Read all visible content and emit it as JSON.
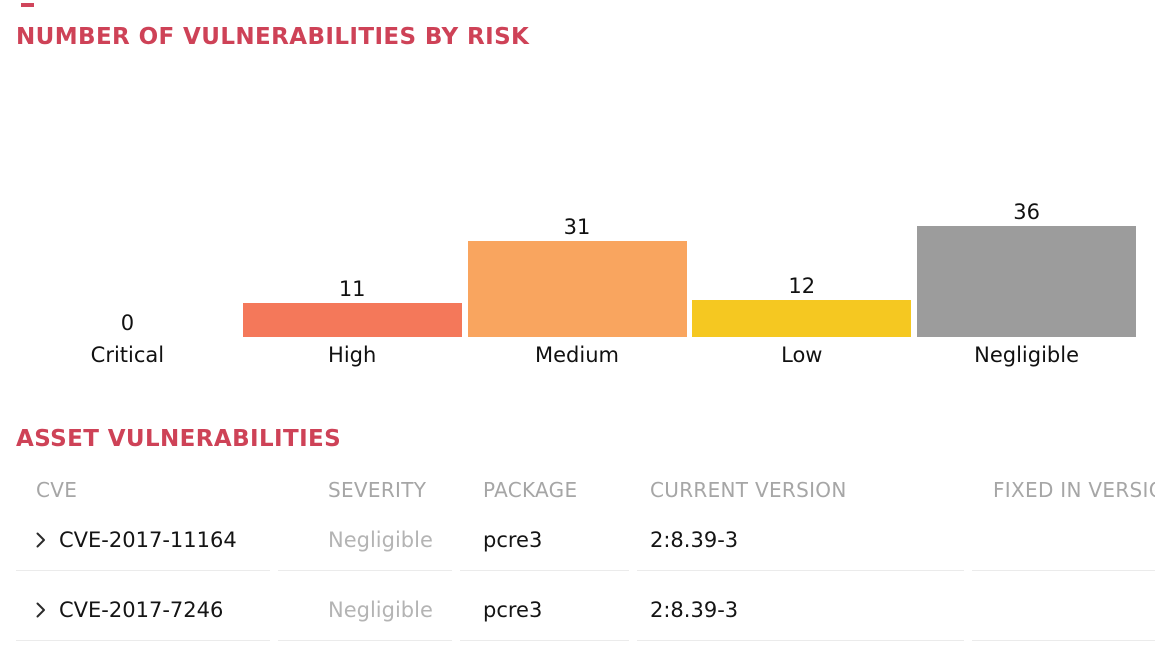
{
  "page": {
    "background": "#FFFFFF",
    "accent_dash_color": "#D0455B",
    "title_color": "#CE4257",
    "text_color": "#141414"
  },
  "chart_section": {
    "title": "NUMBER OF VULNERABILITIES BY RISK"
  },
  "chart_data": {
    "type": "bar",
    "title": "NUMBER OF VULNERABILITIES BY RISK",
    "categories": [
      "Critical",
      "High",
      "Medium",
      "Low",
      "Negligible"
    ],
    "values": [
      0,
      11,
      31,
      12,
      36
    ],
    "value_labels": [
      "0",
      "11",
      "31",
      "12",
      "36"
    ],
    "bar_colors": [
      null,
      "#F4785A",
      "#F9A55F",
      "#F5C821",
      "#9C9C9C"
    ],
    "label_color": "#111111",
    "xlabel": "",
    "ylabel": "",
    "ylim": [
      0,
      36
    ],
    "grid": "off",
    "axes": "hidden",
    "legend": "none"
  },
  "table_section": {
    "title": "ASSET VULNERABILITIES",
    "header_color": "#A6A6A6",
    "severity_color": "#B4B4B4",
    "divider_color": "#EBEBEB",
    "columns": [
      "CVE",
      "SEVERITY",
      "PACKAGE",
      "CURRENT VERSION",
      "FIXED IN VERSION"
    ],
    "rows": [
      {
        "cve": "CVE-2017-11164",
        "severity": "Negligible",
        "package": "pcre3",
        "current_version": "2:8.39-3",
        "fixed_in_version": ""
      },
      {
        "cve": "CVE-2017-7246",
        "severity": "Negligible",
        "package": "pcre3",
        "current_version": "2:8.39-3",
        "fixed_in_version": ""
      }
    ]
  },
  "icons": {
    "row_expand_chevron": "chevron-right"
  }
}
